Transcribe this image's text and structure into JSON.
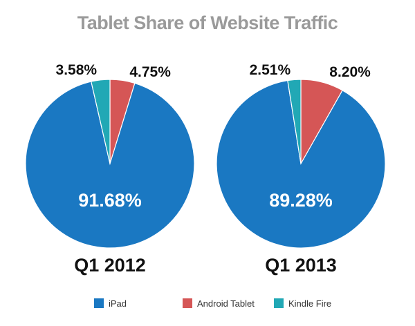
{
  "chart_data": {
    "type": "pie",
    "title": "Tablet Share of Website Traffic",
    "legend_placement": "bottom",
    "categories": [
      "iPad",
      "Android Tablet",
      "Kindle Fire"
    ],
    "colors": [
      "#1a78c2",
      "#d55656",
      "#21a8b5"
    ],
    "title_color": "#9a9a9a",
    "pies": [
      {
        "caption": "Q1 2012",
        "slices": [
          {
            "label": "iPad",
            "value": 91.68,
            "display": "91.68%"
          },
          {
            "label": "Android Tablet",
            "value": 4.75,
            "display": "4.75%"
          },
          {
            "label": "Kindle Fire",
            "value": 3.58,
            "display": "3.58%"
          }
        ]
      },
      {
        "caption": "Q1 2013",
        "slices": [
          {
            "label": "iPad",
            "value": 89.28,
            "display": "89.28%"
          },
          {
            "label": "Android Tablet",
            "value": 8.2,
            "display": "8.20%"
          },
          {
            "label": "Kindle Fire",
            "value": 2.51,
            "display": "2.51%"
          }
        ]
      }
    ]
  }
}
